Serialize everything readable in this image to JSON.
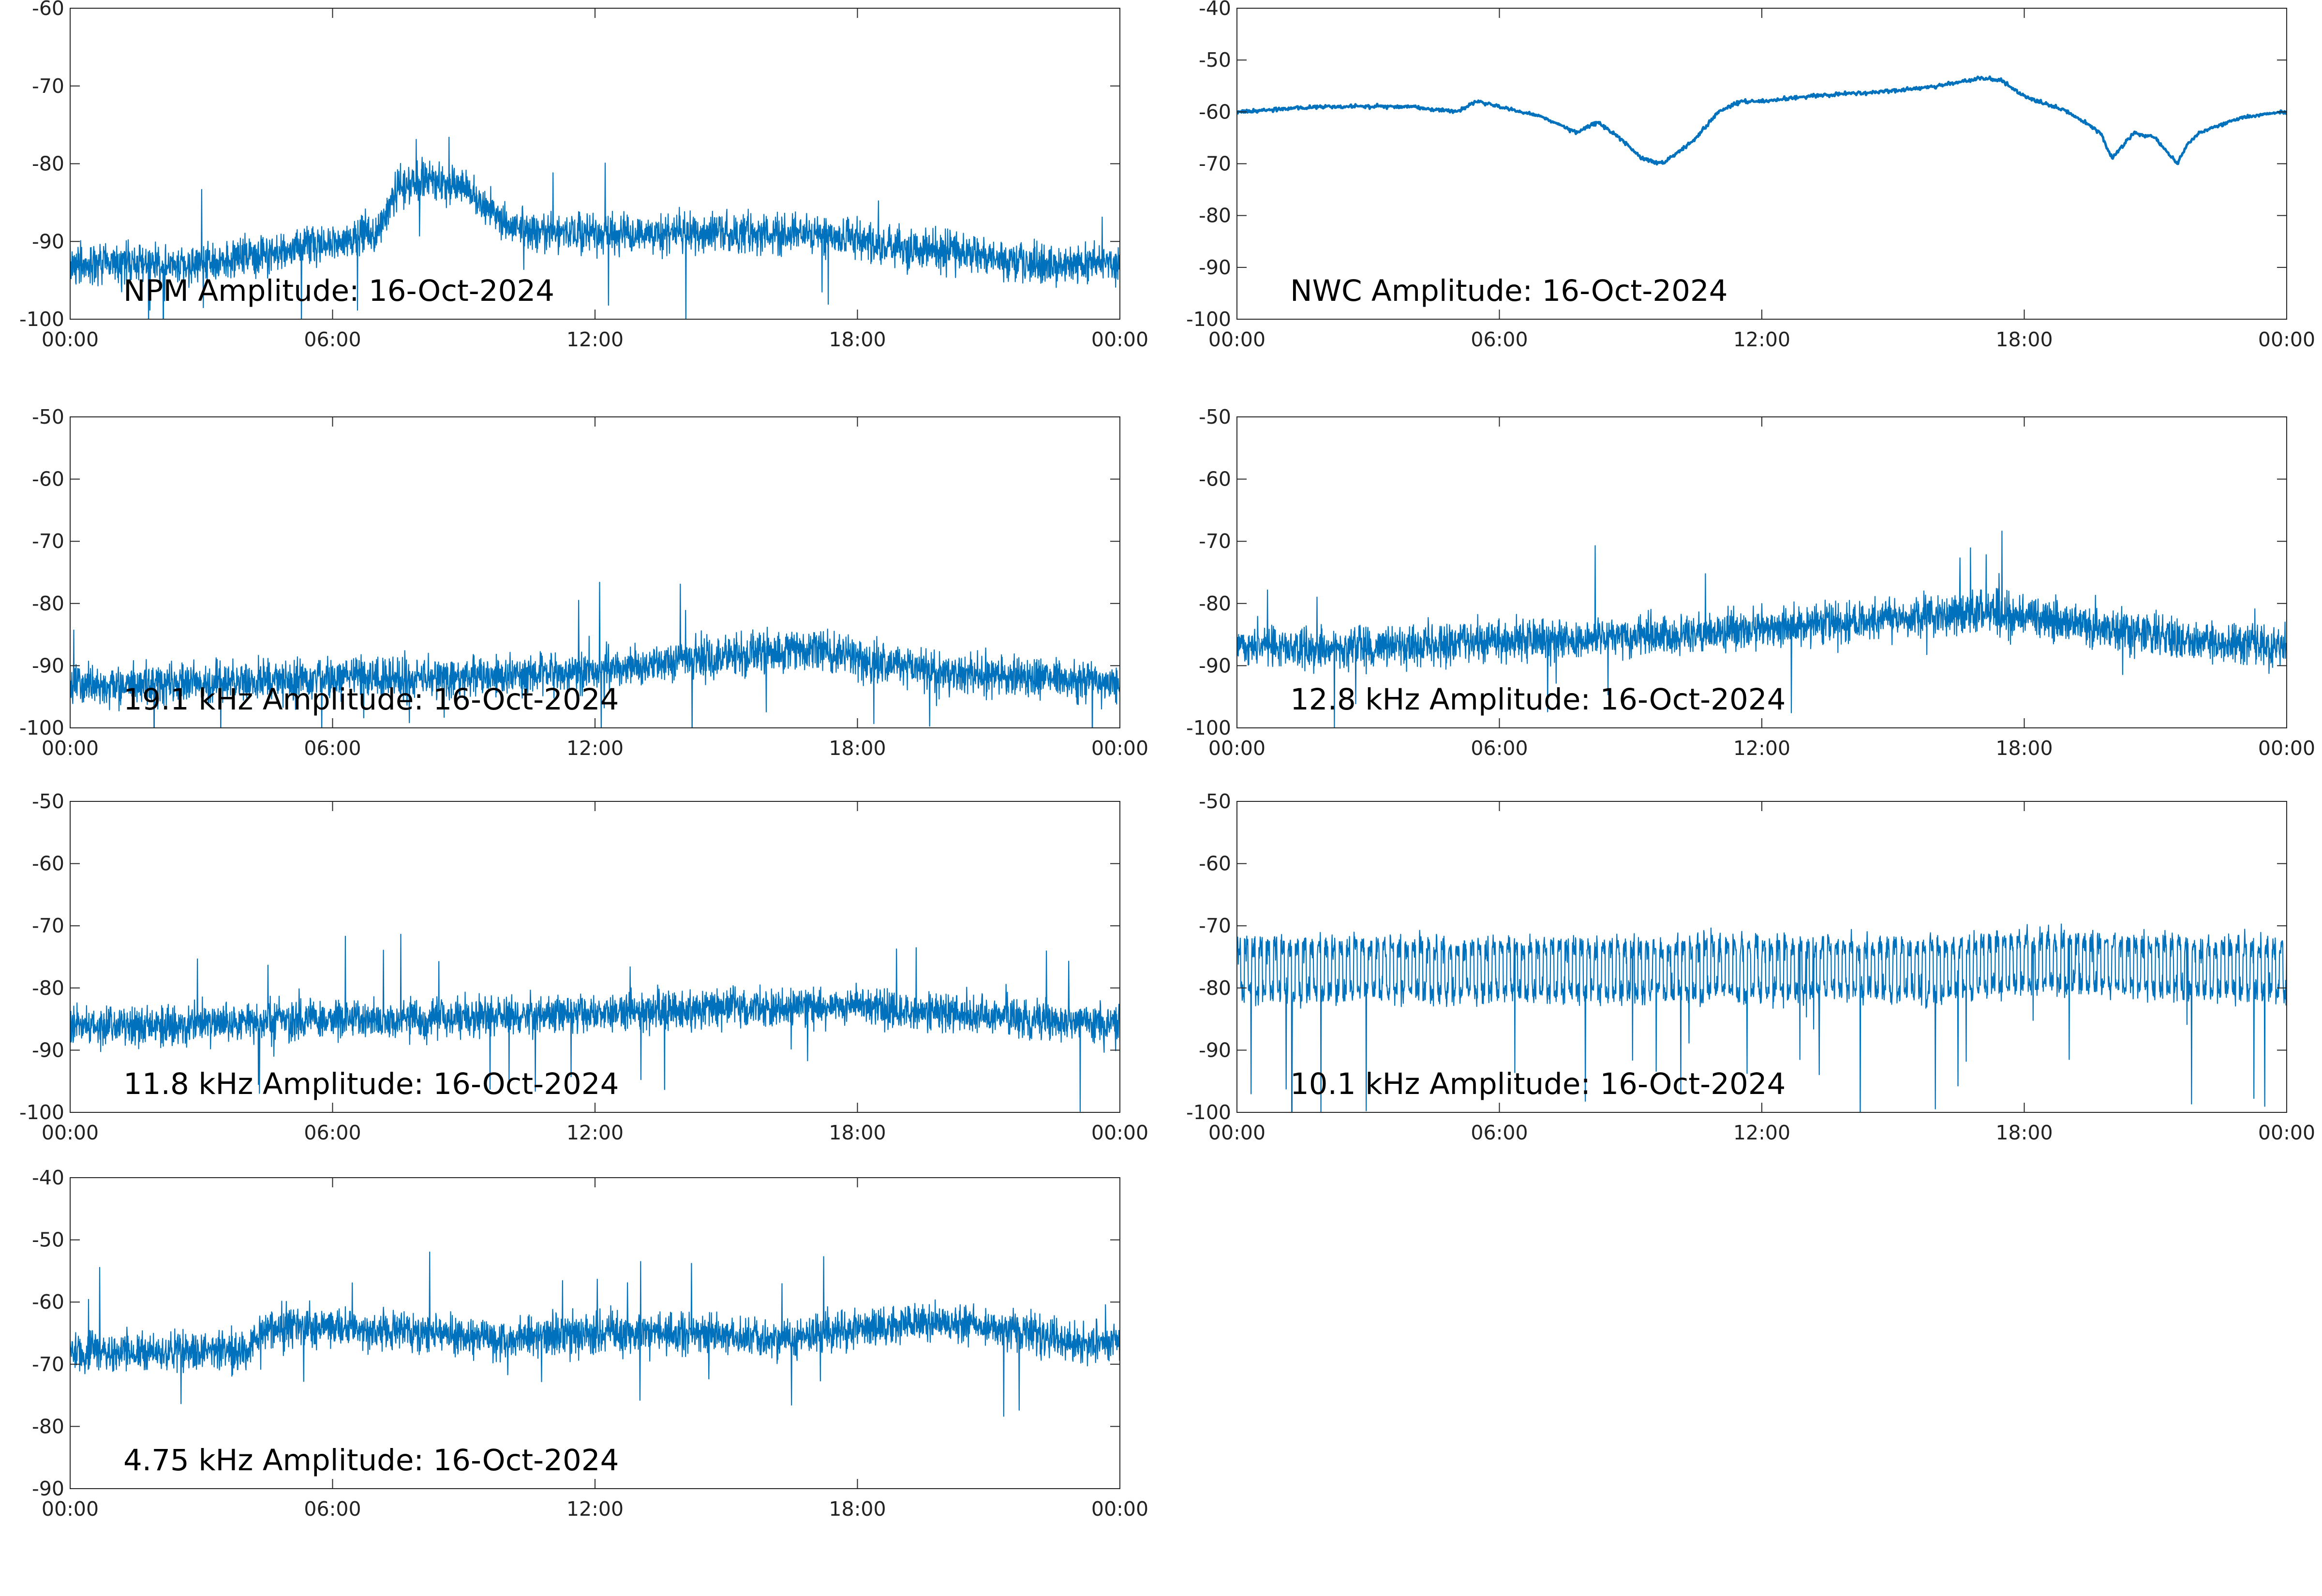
{
  "figure": {
    "line_color": "#0072bd",
    "axes_color": "#262626"
  },
  "chart_data": [
    {
      "type": "line",
      "title": "NPM Amplitude: 16-Oct-2024",
      "xlabel": "",
      "ylabel": "",
      "x_ticks": [
        "00:00",
        "06:00",
        "12:00",
        "18:00",
        "00:00"
      ],
      "y_ticks": [
        -60,
        -70,
        -80,
        -90,
        -100
      ],
      "ylim": [
        -100,
        -60
      ],
      "grid": false,
      "series": [
        {
          "style": "noisy",
          "x": [
            "00:00",
            "01:00",
            "02:00",
            "03:00",
            "04:00",
            "05:00",
            "06:00",
            "07:00",
            "07:30",
            "08:00",
            "09:00",
            "10:00",
            "11:00",
            "12:00",
            "13:00",
            "14:00",
            "15:00",
            "16:00",
            "17:00",
            "18:00",
            "19:00",
            "20:00",
            "21:00",
            "22:00",
            "23:00",
            "24:00"
          ],
          "y": [
            -93,
            -93,
            -93,
            -93,
            -92,
            -91,
            -90,
            -89,
            -83,
            -82,
            -83,
            -88,
            -89,
            -89,
            -89,
            -89,
            -89,
            -89,
            -89,
            -90,
            -91,
            -91,
            -92,
            -93,
            -93,
            -93
          ]
        }
      ]
    },
    {
      "type": "line",
      "title": "NWC Amplitude: 16-Oct-2024",
      "xlabel": "",
      "ylabel": "",
      "x_ticks": [
        "00:00",
        "06:00",
        "12:00",
        "18:00",
        "00:00"
      ],
      "y_ticks": [
        -40,
        -50,
        -60,
        -70,
        -80,
        -90,
        -100
      ],
      "ylim": [
        -100,
        -40
      ],
      "grid": false,
      "series": [
        {
          "style": "smooth",
          "x": [
            "00:00",
            "01:00",
            "02:00",
            "03:00",
            "04:00",
            "05:00",
            "05:30",
            "06:00",
            "07:00",
            "07:45",
            "08:15",
            "08:45",
            "09:15",
            "09:45",
            "10:30",
            "11:00",
            "11:30",
            "12:00",
            "13:00",
            "14:00",
            "15:00",
            "16:00",
            "17:00",
            "17:30",
            "18:00",
            "19:00",
            "19:45",
            "20:00",
            "20:30",
            "21:00",
            "21:30",
            "21:45",
            "22:00",
            "23:00",
            "24:00"
          ],
          "y": [
            -60,
            -59.5,
            -59,
            -59,
            -59,
            -60,
            -58,
            -59,
            -61,
            -64,
            -62,
            -65,
            -69,
            -70,
            -65,
            -60,
            -58,
            -58,
            -57,
            -56.5,
            -56,
            -55,
            -53.5,
            -54,
            -57,
            -60,
            -64,
            -69,
            -64,
            -65,
            -70,
            -66,
            -64,
            -61,
            -60
          ]
        }
      ]
    },
    {
      "type": "line",
      "title": "19.1 kHz Amplitude: 16-Oct-2024",
      "xlabel": "",
      "ylabel": "",
      "x_ticks": [
        "00:00",
        "06:00",
        "12:00",
        "18:00",
        "00:00"
      ],
      "y_ticks": [
        -50,
        -60,
        -70,
        -80,
        -90,
        -100
      ],
      "ylim": [
        -100,
        -50
      ],
      "grid": false,
      "series": [
        {
          "style": "noisy",
          "x": [
            "00:00",
            "02:00",
            "04:00",
            "06:00",
            "08:00",
            "10:00",
            "12:00",
            "14:00",
            "16:00",
            "17:00",
            "18:00",
            "20:00",
            "22:00",
            "24:00"
          ],
          "y": [
            -93,
            -93,
            -92.5,
            -92,
            -92,
            -91.5,
            -91,
            -89,
            -88,
            -87,
            -89,
            -91,
            -92,
            -93
          ]
        }
      ]
    },
    {
      "type": "line",
      "title": "12.8 kHz Amplitude: 16-Oct-2024",
      "xlabel": "",
      "ylabel": "",
      "x_ticks": [
        "00:00",
        "06:00",
        "12:00",
        "18:00",
        "00:00"
      ],
      "y_ticks": [
        -50,
        -60,
        -70,
        -80,
        -90,
        -100
      ],
      "ylim": [
        -100,
        -50
      ],
      "grid": false,
      "series": [
        {
          "style": "noisy",
          "x": [
            "00:00",
            "02:00",
            "04:00",
            "06:00",
            "08:00",
            "10:00",
            "12:00",
            "14:00",
            "16:00",
            "17:00",
            "18:00",
            "20:00",
            "22:00",
            "24:00"
          ],
          "y": [
            -87,
            -87,
            -86.5,
            -86,
            -85.5,
            -85,
            -84,
            -83,
            -82,
            -81.5,
            -82,
            -84,
            -86,
            -87
          ]
        }
      ]
    },
    {
      "type": "line",
      "title": "11.8 kHz Amplitude: 16-Oct-2024",
      "xlabel": "",
      "ylabel": "",
      "x_ticks": [
        "00:00",
        "06:00",
        "12:00",
        "18:00",
        "00:00"
      ],
      "y_ticks": [
        -50,
        -60,
        -70,
        -80,
        -90,
        -100
      ],
      "ylim": [
        -100,
        -50
      ],
      "grid": false,
      "series": [
        {
          "style": "noisy",
          "x": [
            "00:00",
            "02:00",
            "04:00",
            "06:00",
            "08:00",
            "10:00",
            "12:00",
            "14:00",
            "16:00",
            "18:00",
            "20:00",
            "22:00",
            "24:00"
          ],
          "y": [
            -86,
            -86,
            -85.5,
            -85,
            -85,
            -84.5,
            -84,
            -83.5,
            -83,
            -83,
            -84,
            -85,
            -86
          ]
        }
      ]
    },
    {
      "type": "line",
      "title": "10.1 kHz Amplitude: 16-Oct-2024",
      "xlabel": "",
      "ylabel": "",
      "x_ticks": [
        "00:00",
        "06:00",
        "12:00",
        "18:00",
        "00:00"
      ],
      "y_ticks": [
        -50,
        -60,
        -70,
        -80,
        -90,
        -100
      ],
      "ylim": [
        -100,
        -50
      ],
      "grid": false,
      "series": [
        {
          "style": "pulsed",
          "x": [
            "00:00",
            "02:00",
            "04:00",
            "06:00",
            "08:00",
            "10:00",
            "12:00",
            "14:00",
            "16:00",
            "18:00",
            "20:00",
            "22:00",
            "24:00"
          ],
          "y": [
            -77,
            -77,
            -77,
            -77,
            -77,
            -77,
            -77,
            -77,
            -77,
            -76,
            -76,
            -77,
            -77
          ]
        }
      ]
    },
    {
      "type": "line",
      "title": "4.75 kHz Amplitude: 16-Oct-2024",
      "xlabel": "",
      "ylabel": "",
      "x_ticks": [
        "00:00",
        "06:00",
        "12:00",
        "18:00",
        "00:00"
      ],
      "y_ticks": [
        -40,
        -50,
        -60,
        -70,
        -80,
        -90
      ],
      "ylim": [
        -90,
        -40
      ],
      "grid": false,
      "series": [
        {
          "style": "noisy",
          "x": [
            "00:00",
            "02:00",
            "04:00",
            "04:30",
            "06:00",
            "08:00",
            "10:00",
            "12:00",
            "14:00",
            "16:00",
            "18:00",
            "20:00",
            "22:00",
            "23:00",
            "24:00"
          ],
          "y": [
            -68,
            -68,
            -68,
            -64,
            -64,
            -65,
            -66,
            -65,
            -65,
            -66,
            -64,
            -63,
            -65,
            -67,
            -66
          ]
        }
      ]
    }
  ]
}
